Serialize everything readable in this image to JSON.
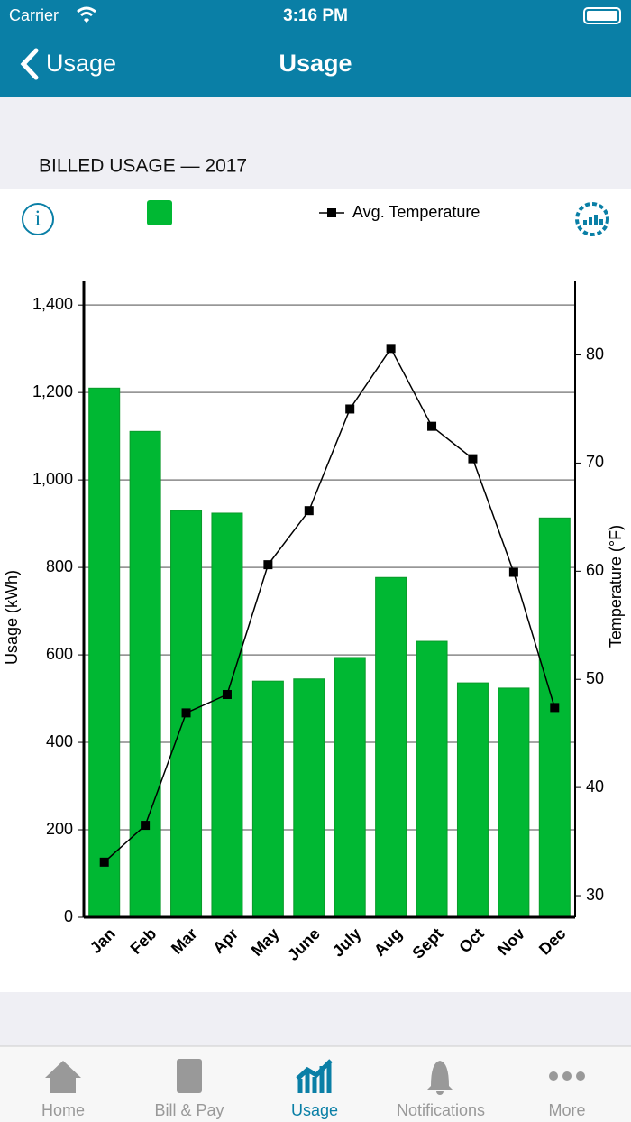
{
  "status_bar": {
    "carrier": "Carrier",
    "time": "3:16 PM"
  },
  "nav": {
    "back": "Usage",
    "title": "Usage"
  },
  "section": {
    "title": "BILLED USAGE — 2017"
  },
  "chart_data": {
    "type": "bar-line",
    "categories": [
      "Jan",
      "Feb",
      "Mar",
      "Apr",
      "May",
      "June",
      "July",
      "Aug",
      "Sept",
      "Oct",
      "Nov",
      "Dec"
    ],
    "y_label": "Usage (kWh)",
    "y2_label": "Temperature (°F)",
    "series": [
      {
        "type": "bar",
        "color": "#00b833",
        "values": [
          1210,
          1111,
          930,
          924,
          540,
          545,
          594,
          777,
          631,
          536,
          524,
          913
        ]
      },
      {
        "type": "line",
        "name": "Avg. Temperature",
        "axis": "y2",
        "color": "#000000",
        "values": [
          33.1,
          36.5,
          46.9,
          48.6,
          60.6,
          65.6,
          75.0,
          80.6,
          73.4,
          70.4,
          59.9,
          47.4
        ]
      }
    ],
    "ylim": [
      0,
      1454
    ],
    "yticks": [
      0,
      200,
      400,
      600,
      800,
      {
        "value": 1000,
        "label": "1,000"
      },
      {
        "value": 1200,
        "label": "1,200"
      },
      {
        "value": 1400,
        "label": "1,400"
      }
    ],
    "y2lim": [
      28,
      86.8
    ],
    "y2ticks": [
      30,
      40,
      50,
      60,
      70,
      80
    ],
    "grid": true
  },
  "tabs": [
    "Home",
    "Bill & Pay",
    "Usage",
    "Notifications",
    "More"
  ]
}
